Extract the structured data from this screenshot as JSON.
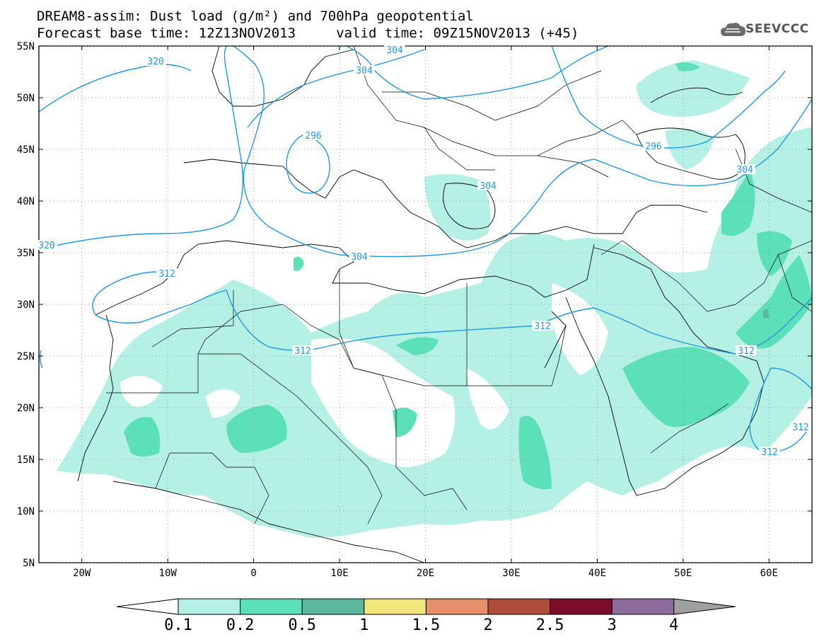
{
  "title": {
    "line1": "DREAM8-assim: Dust load (g/m²) and 700hPa geopotential",
    "line2": "Forecast base time: 12Z13NOV2013     valid time: 09Z15NOV2013 (+45)"
  },
  "logo": {
    "text": "SEEVCCC",
    "icon": "cloud-logo-icon"
  },
  "axes": {
    "lat_labels": [
      "55N",
      "50N",
      "45N",
      "40N",
      "35N",
      "30N",
      "25N",
      "20N",
      "15N",
      "10N",
      "5N"
    ],
    "lat_values": [
      55,
      50,
      45,
      40,
      35,
      30,
      25,
      20,
      15,
      10,
      5
    ],
    "lon_labels": [
      "20W",
      "10W",
      "0",
      "10E",
      "20E",
      "30E",
      "40E",
      "50E",
      "60E"
    ],
    "lon_values": [
      -20,
      -10,
      0,
      10,
      20,
      30,
      40,
      50,
      60
    ],
    "lon_range": [
      -25,
      65
    ],
    "lat_range": [
      5,
      55
    ],
    "grid": "dotted"
  },
  "contour_labels": [
    "320",
    "304",
    "304",
    "296",
    "304",
    "312",
    "312",
    "312",
    "304",
    "296",
    "304",
    "312",
    "312",
    "320",
    "312"
  ],
  "colorbar": {
    "tick_labels": [
      "0.1",
      "0.2",
      "0.5",
      "1",
      "1.5",
      "2",
      "2.5",
      "3",
      "4"
    ],
    "colors": [
      "#ffffff",
      "#b4f0e4",
      "#5ce0b8",
      "#5cb89c",
      "#f0e67c",
      "#e8906a",
      "#b04c3c",
      "#7c0c28",
      "#8c6c9c",
      "#a0a0a0"
    ]
  },
  "colors": {
    "dust_light": "#b4f0e4",
    "dust_medium": "#5ce0b8",
    "dust_dark": "#5cb89c",
    "contour": "#1f9ae0",
    "coast": "#000000"
  }
}
